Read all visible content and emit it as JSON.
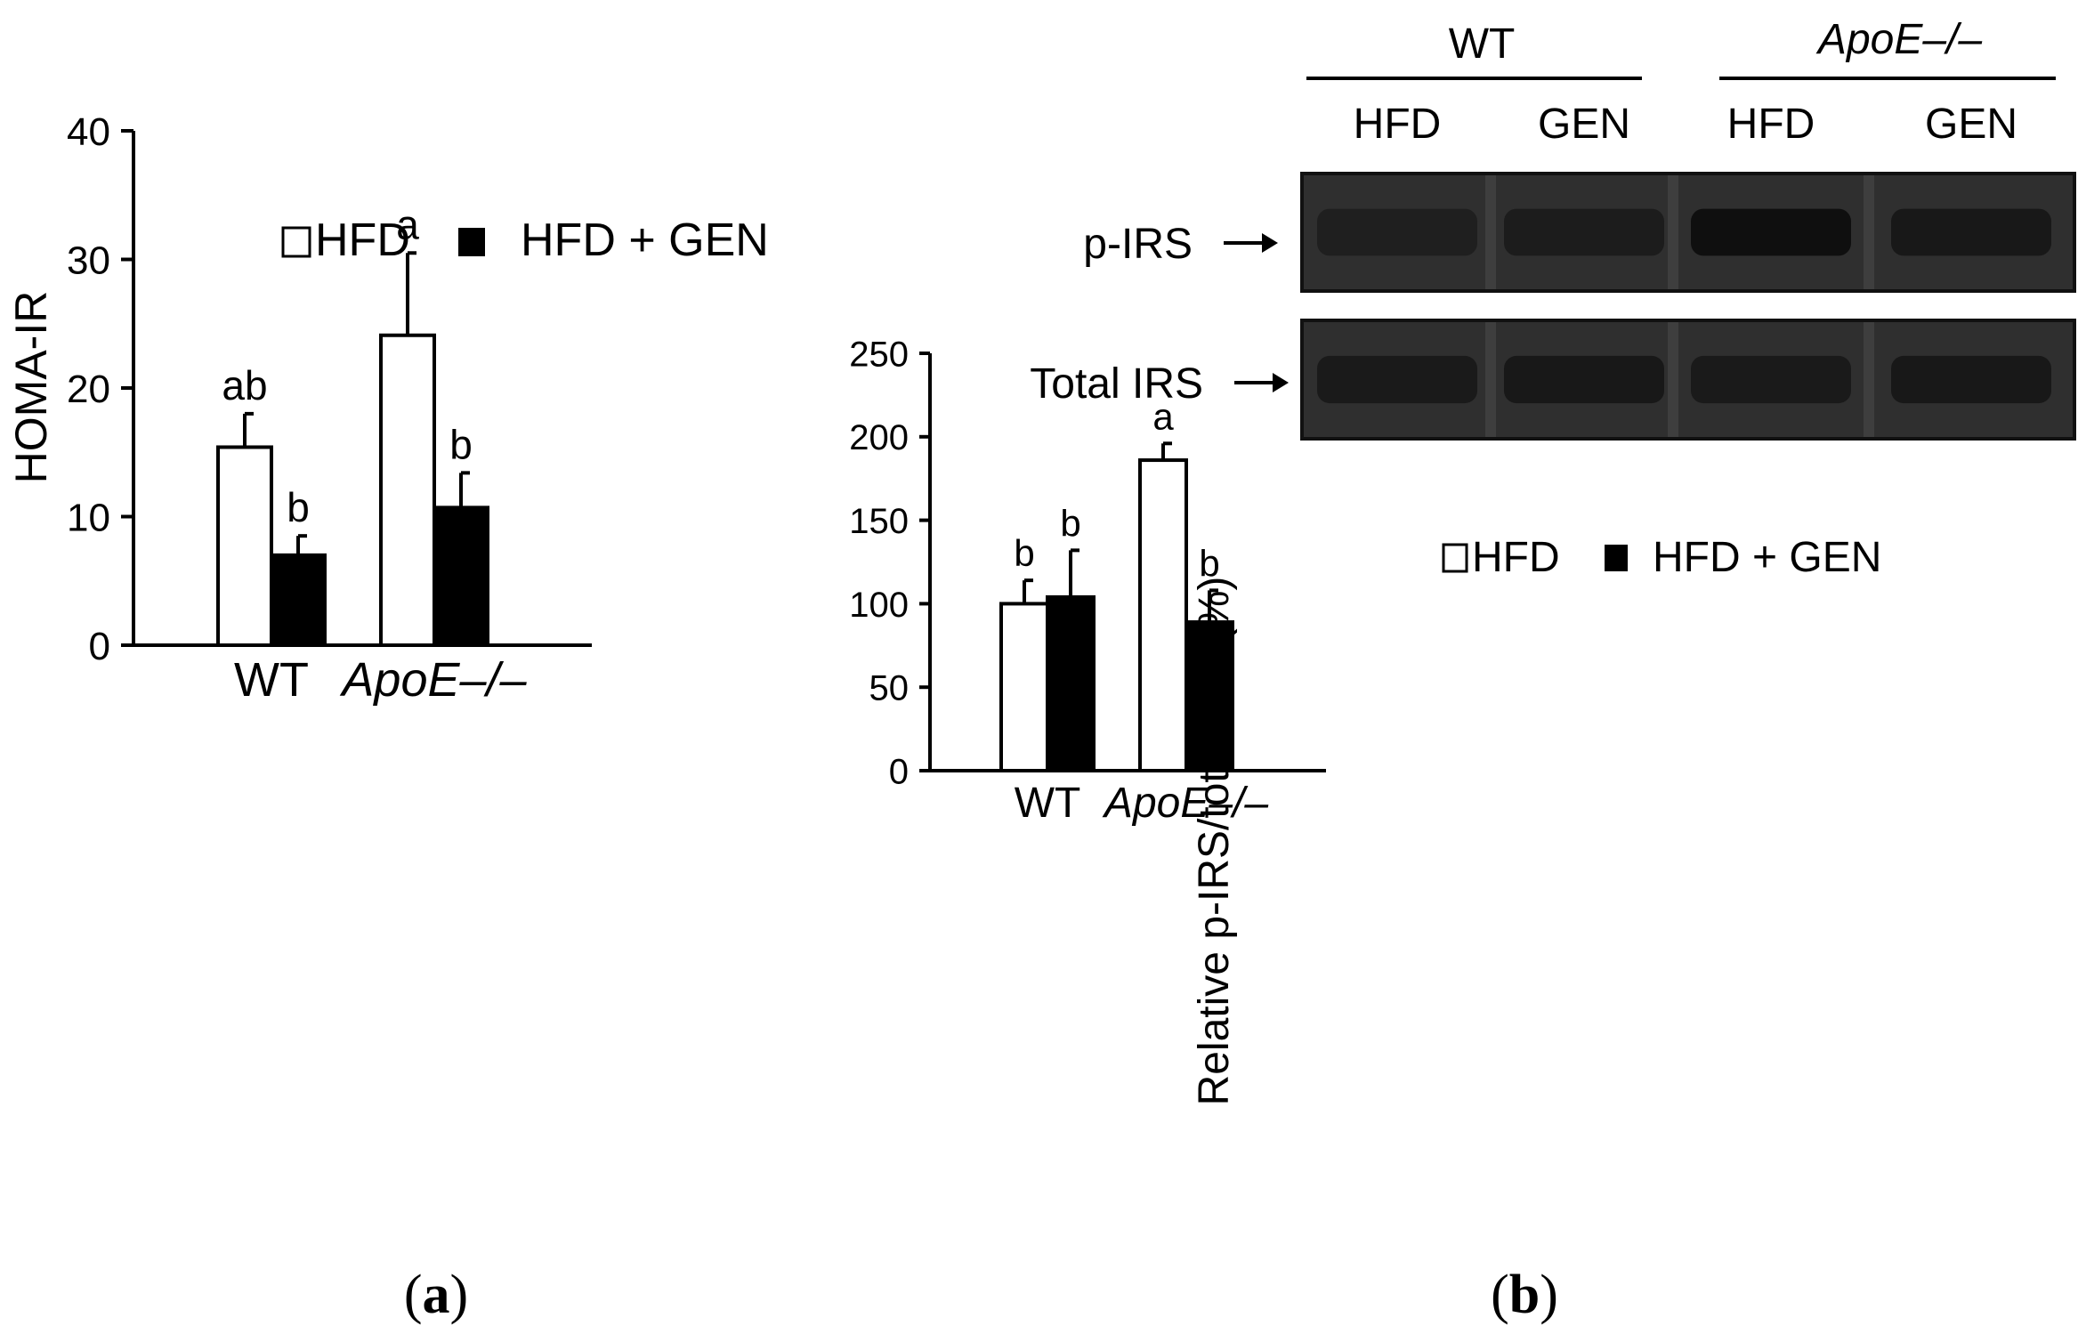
{
  "panels": {
    "a_label": "a",
    "b_label": "b"
  },
  "blot": {
    "group_labels": [
      "WT",
      "ApoE–/–"
    ],
    "lane_labels": [
      "HFD",
      "GEN",
      "HFD",
      "GEN"
    ],
    "row_labels": [
      "p-IRS",
      "Total IRS"
    ],
    "band_intensity": {
      "p-IRS": [
        0.35,
        0.45,
        0.95,
        0.6
      ],
      "Total IRS": [
        0.55,
        0.6,
        0.55,
        0.6
      ]
    }
  },
  "chart_data": [
    {
      "type": "bar",
      "panel": "a",
      "categories": [
        "WT",
        "ApoE–/–"
      ],
      "series": [
        {
          "name": "HFD",
          "values": [
            15.4,
            24.1
          ],
          "errors": [
            2.6,
            6.4
          ],
          "letters": [
            "ab",
            "a"
          ],
          "color": "#ffffff"
        },
        {
          "name": "HFD + GEN",
          "values": [
            7.0,
            10.7
          ],
          "errors": [
            1.5,
            2.7
          ],
          "letters": [
            "b",
            "b"
          ],
          "color": "#000000"
        }
      ],
      "ylabel": "HOMA-IR",
      "ylim": [
        0,
        40
      ],
      "yticks": [
        0,
        10,
        20,
        30,
        40
      ],
      "legend": "top"
    },
    {
      "type": "bar",
      "panel": "b",
      "categories": [
        "WT",
        "ApoE–/–"
      ],
      "series": [
        {
          "name": "HFD",
          "values": [
            100,
            186
          ],
          "errors": [
            14,
            10
          ],
          "letters": [
            "b",
            "a"
          ],
          "color": "#ffffff"
        },
        {
          "name": "HFD + GEN",
          "values": [
            104,
            89
          ],
          "errors": [
            28,
            19
          ],
          "letters": [
            "b",
            "b"
          ],
          "color": "#000000"
        }
      ],
      "ylabel": "Relative p-IRS/total IRS (%)",
      "ylim": [
        0,
        250
      ],
      "yticks": [
        0,
        50,
        100,
        150,
        200,
        250
      ],
      "legend": "top"
    }
  ]
}
